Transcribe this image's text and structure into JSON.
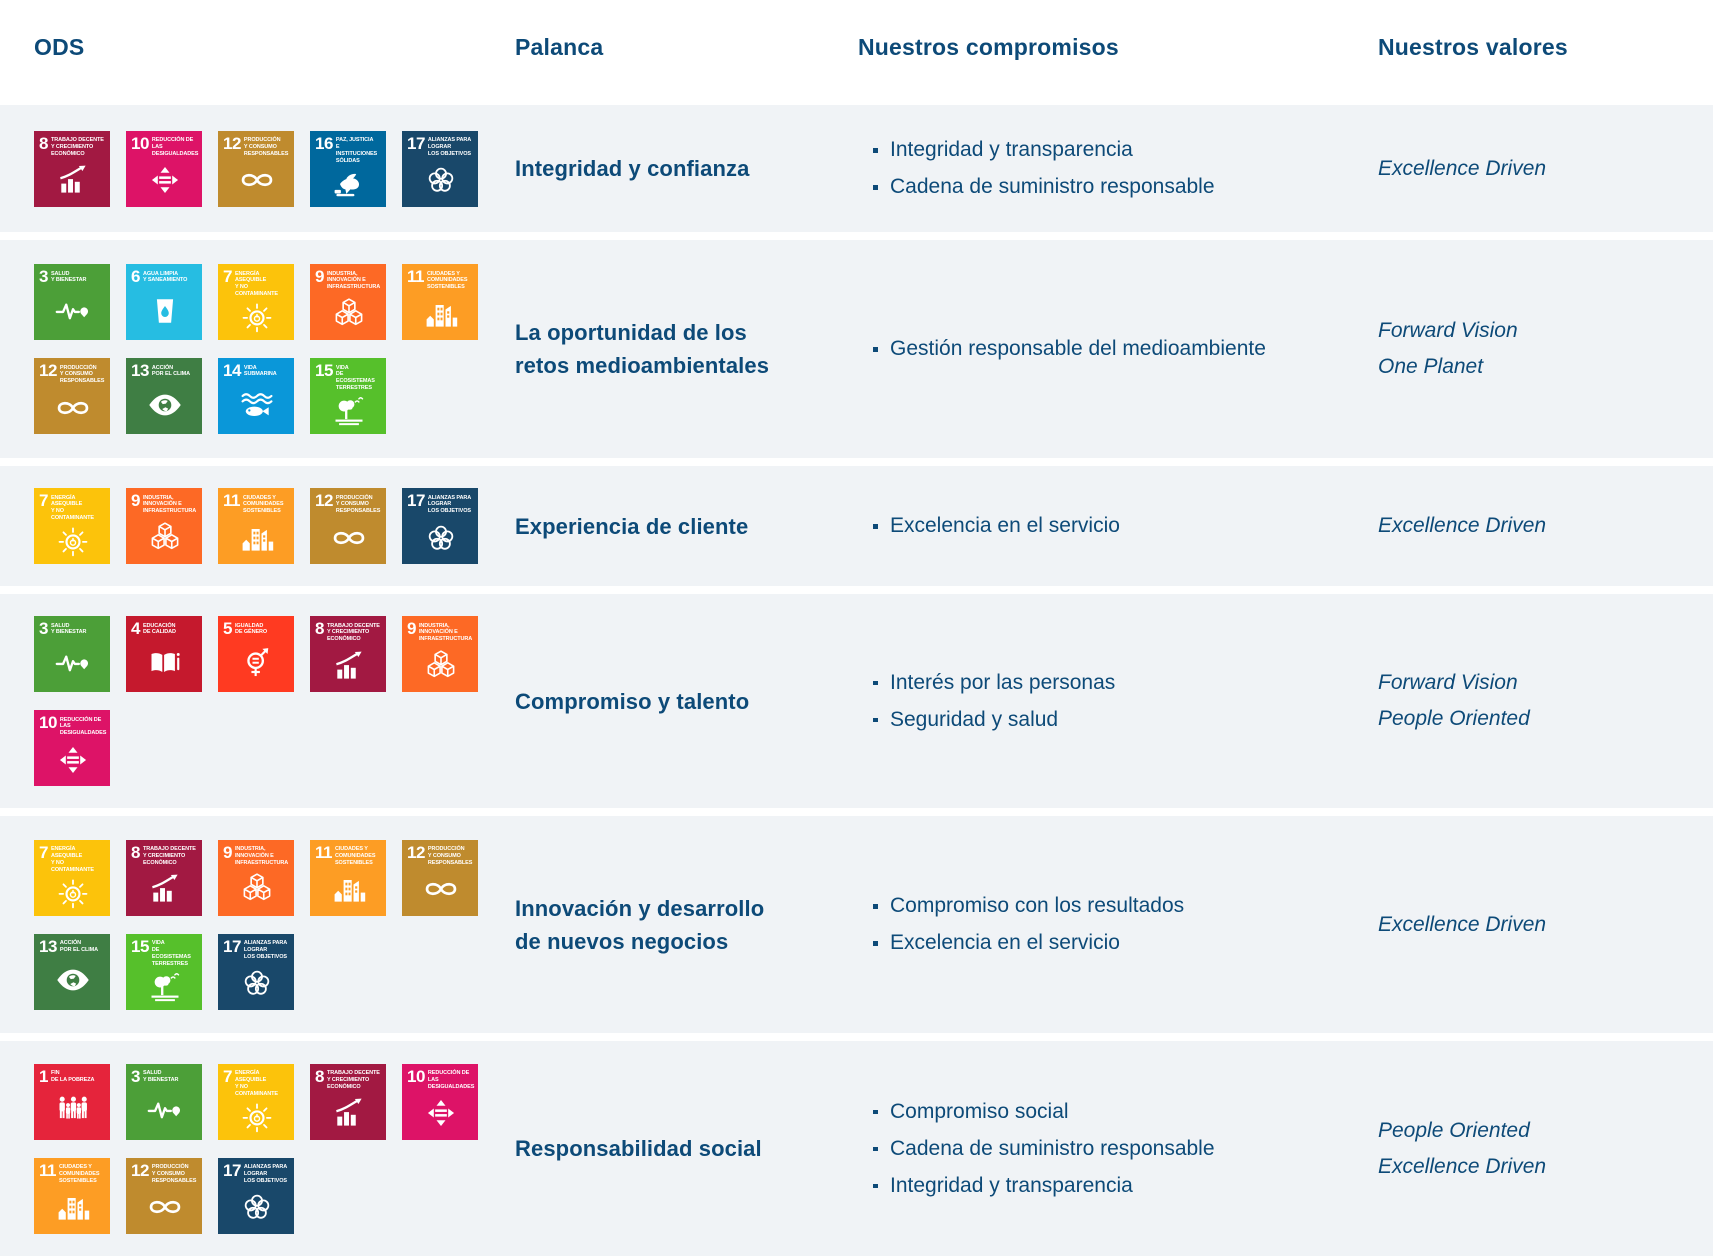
{
  "header": {
    "ods": "ODS",
    "palanca": "Palanca",
    "compromisos": "Nuestros compromisos",
    "valores": "Nuestros valores"
  },
  "theme": {
    "text_color": "#0d4a78",
    "row_background": "#f0f3f6"
  },
  "sdg": {
    "1": {
      "num": "1",
      "label": "FIN\nDE LA POBREZA",
      "color": "#E5243B",
      "glyph": "people-icon"
    },
    "3": {
      "num": "3",
      "label": "SALUD\nY BIENESTAR",
      "color": "#4C9F38",
      "glyph": "heartbeat-icon"
    },
    "4": {
      "num": "4",
      "label": "EDUCACIÓN\nDE CALIDAD",
      "color": "#C5192D",
      "glyph": "open-book-icon"
    },
    "5": {
      "num": "5",
      "label": "IGUALDAD\nDE GÉNERO",
      "color": "#FF3A21",
      "glyph": "gender-equality-icon"
    },
    "6": {
      "num": "6",
      "label": "AGUA LIMPIA\nY SANEAMIENTO",
      "color": "#26BDE2",
      "glyph": "water-drop-icon"
    },
    "7": {
      "num": "7",
      "label": "ENERGÍA ASEQUIBLE\nY NO CONTAMINANTE",
      "color": "#FCC30B",
      "glyph": "sun-energy-icon"
    },
    "8": {
      "num": "8",
      "label": "TRABAJO DECENTE\nY CRECIMIENTO\nECONÓMICO",
      "color": "#A21942",
      "glyph": "growth-chart-icon"
    },
    "9": {
      "num": "9",
      "label": "INDUSTRIA,\nINNOVACIÓN E\nINFRAESTRUCTURA",
      "color": "#FD6925",
      "glyph": "cubes-icon"
    },
    "10": {
      "num": "10",
      "label": "REDUCCIÓN DE LAS\nDESIGUALDADES",
      "color": "#DD1367",
      "glyph": "equality-arrows-icon"
    },
    "11": {
      "num": "11",
      "label": "CIUDADES Y\nCOMUNIDADES\nSOSTENIBLES",
      "color": "#FD9D24",
      "glyph": "city-skyline-icon"
    },
    "12": {
      "num": "12",
      "label": "PRODUCCIÓN\nY CONSUMO\nRESPONSABLES",
      "color": "#BF8B2E",
      "glyph": "infinity-loop-icon"
    },
    "13": {
      "num": "13",
      "label": "ACCIÓN\nPOR EL CLIMA",
      "color": "#3F7E44",
      "glyph": "eye-globe-icon"
    },
    "14": {
      "num": "14",
      "label": "VIDA\nSUBMARINA",
      "color": "#0A97D9",
      "glyph": "fish-waves-icon"
    },
    "15": {
      "num": "15",
      "label": "VIDA\nDE ECOSISTEMAS\nTERRESTRES",
      "color": "#56C02B",
      "glyph": "tree-land-icon"
    },
    "16": {
      "num": "16",
      "label": "PAZ, JUSTICIA\nE INSTITUCIONES\nSÓLIDAS",
      "color": "#00689D",
      "glyph": "dove-gavel-icon"
    },
    "17": {
      "num": "17",
      "label": "ALIANZAS PARA\nLOGRAR\nLOS OBJETIVOS",
      "color": "#19486A",
      "glyph": "linked-circles-icon"
    }
  },
  "rows": [
    {
      "ods": [
        8,
        10,
        12,
        16,
        17
      ],
      "palanca": "Integridad y confianza",
      "compromisos": [
        "Integridad y transparencia",
        "Cadena de suministro responsable"
      ],
      "valores": [
        "Excellence Driven"
      ]
    },
    {
      "ods": [
        3,
        6,
        7,
        9,
        11,
        12,
        13,
        14,
        15
      ],
      "palanca": "La oportunidad de los retos medioambientales",
      "compromisos": [
        "Gestión responsable del medioambiente"
      ],
      "valores": [
        "Forward Vision",
        "One Planet"
      ]
    },
    {
      "ods": [
        7,
        9,
        11,
        12,
        17
      ],
      "palanca": "Experiencia de cliente",
      "compromisos": [
        "Excelencia en el servicio"
      ],
      "valores": [
        "Excellence Driven"
      ]
    },
    {
      "ods": [
        3,
        4,
        5,
        8,
        9,
        10
      ],
      "palanca": "Compromiso y talento",
      "compromisos": [
        "Interés por las personas",
        "Seguridad y salud"
      ],
      "valores": [
        "Forward Vision",
        "People Oriented"
      ]
    },
    {
      "ods": [
        7,
        8,
        9,
        11,
        12,
        13,
        15,
        17
      ],
      "palanca": "Innovación y desarrollo de nuevos negocios",
      "compromisos": [
        "Compromiso con los resultados",
        "Excelencia en el servicio"
      ],
      "valores": [
        "Excellence Driven"
      ]
    },
    {
      "ods": [
        1,
        3,
        7,
        8,
        10,
        11,
        12,
        17
      ],
      "palanca": "Responsabilidad social",
      "compromisos": [
        "Compromiso social",
        "Cadena de suministro responsable",
        "Integridad y transparencia"
      ],
      "valores": [
        "People Oriented",
        "Excellence Driven"
      ]
    }
  ]
}
